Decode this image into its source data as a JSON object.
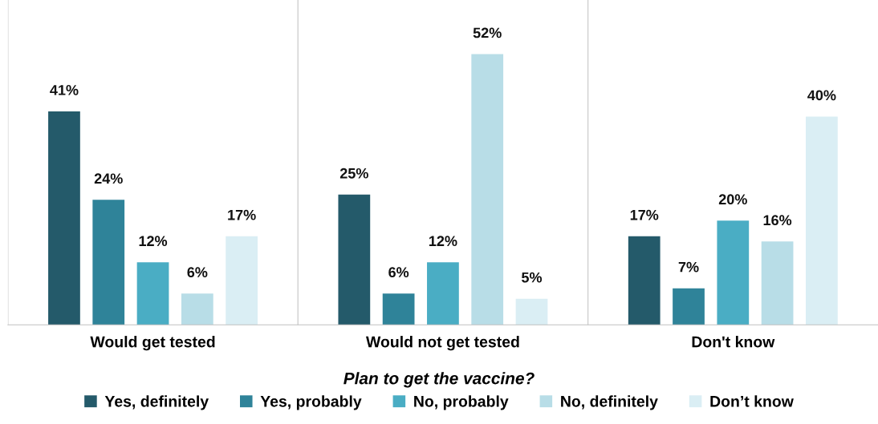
{
  "chart_data": {
    "type": "bar",
    "categories": [
      "Would get tested",
      "Would not get tested",
      "Don't know"
    ],
    "series": [
      {
        "name": "Yes, definitely",
        "color": "#245a6a",
        "values": [
          41,
          25,
          17
        ],
        "value_labels": [
          "41%",
          "25%",
          "17%"
        ]
      },
      {
        "name": "Yes, probably",
        "color": "#2f8399",
        "values": [
          24,
          6,
          7
        ],
        "value_labels": [
          "24%",
          "6%",
          "7%"
        ]
      },
      {
        "name": "No, probably",
        "color": "#4aadc4",
        "values": [
          12,
          12,
          20
        ],
        "value_labels": [
          "12%",
          "12%",
          "20%"
        ]
      },
      {
        "name": "No, definitely",
        "color": "#b8dde7",
        "values": [
          6,
          52,
          16
        ],
        "value_labels": [
          "6%",
          "52%",
          "16%"
        ]
      },
      {
        "name": "Don’t know",
        "color": "#daeef4",
        "values": [
          17,
          5,
          40
        ],
        "value_labels": [
          "17%",
          "5%",
          "40%"
        ]
      }
    ],
    "legend_title": "Plan to get the vaccine?",
    "legend": "bottom",
    "grid": "x",
    "tick_labels": "x"
  }
}
